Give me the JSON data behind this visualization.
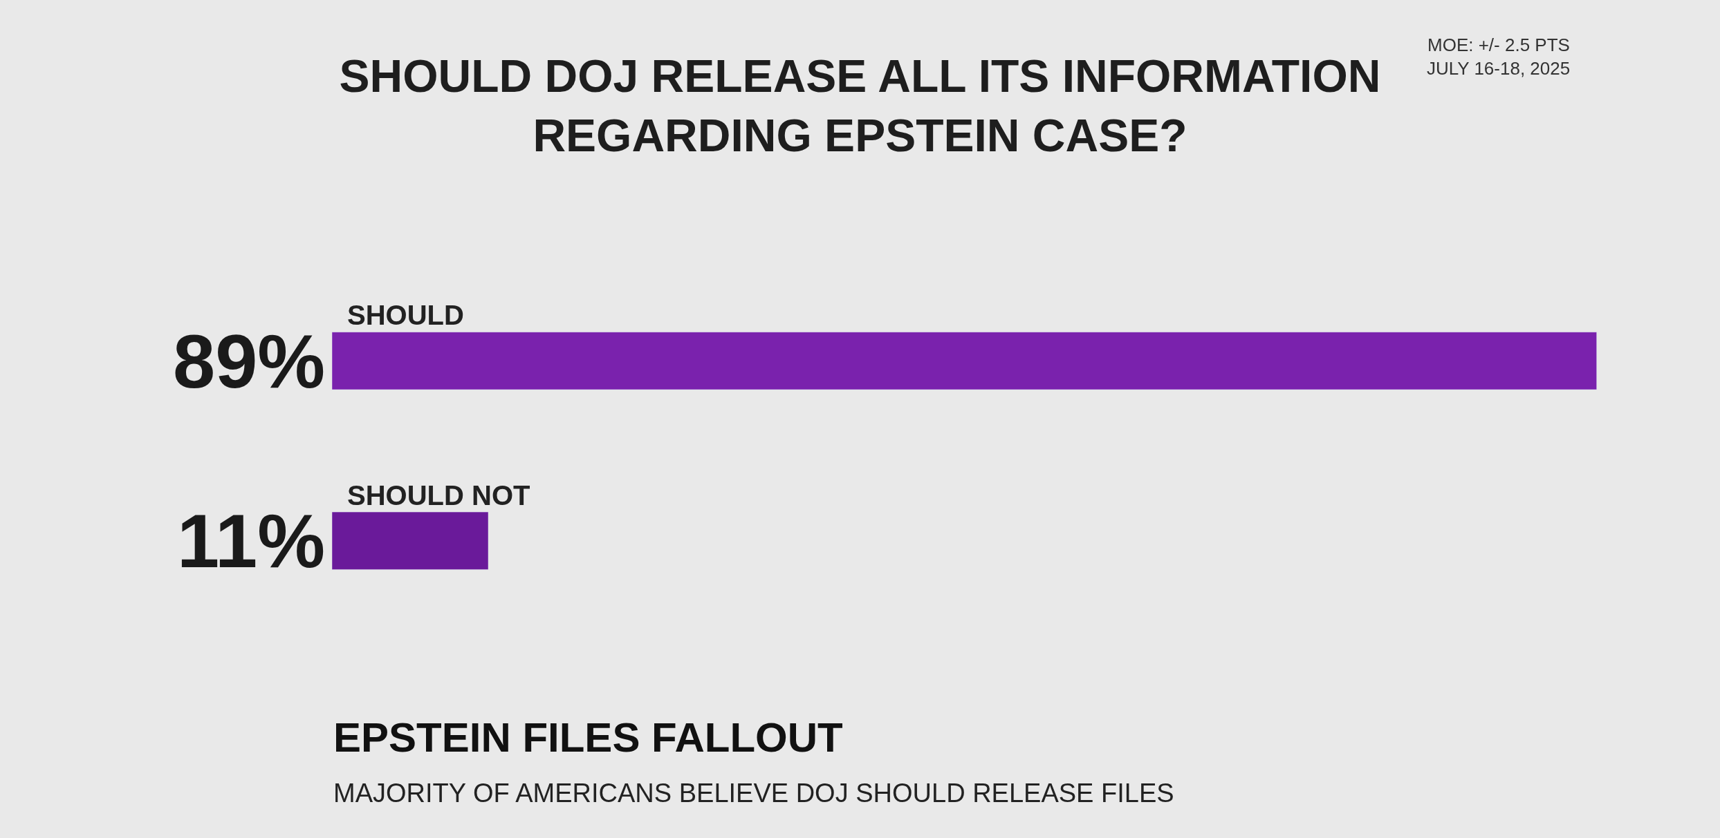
{
  "chart_data": {
    "type": "bar",
    "orientation": "horizontal",
    "title": "SHOULD DOJ RELEASE ALL ITS INFORMATION\nREGARDING EPSTEIN CASE?",
    "categories": [
      "SHOULD",
      "SHOULD NOT"
    ],
    "values": [
      89,
      11
    ],
    "colors": [
      "#7a22ad",
      "#6a1a9a"
    ],
    "value_labels": [
      "89%",
      "11%"
    ],
    "annotations": [
      "MOE: +/- 2.5 PTS",
      "JULY 16-18, 2025",
      "EPSTEIN FILES FALLOUT",
      "MAJORITY OF AMERICANS BELIEVE DOJ SHOULD RELEASE FILES"
    ],
    "legend": false
  }
}
